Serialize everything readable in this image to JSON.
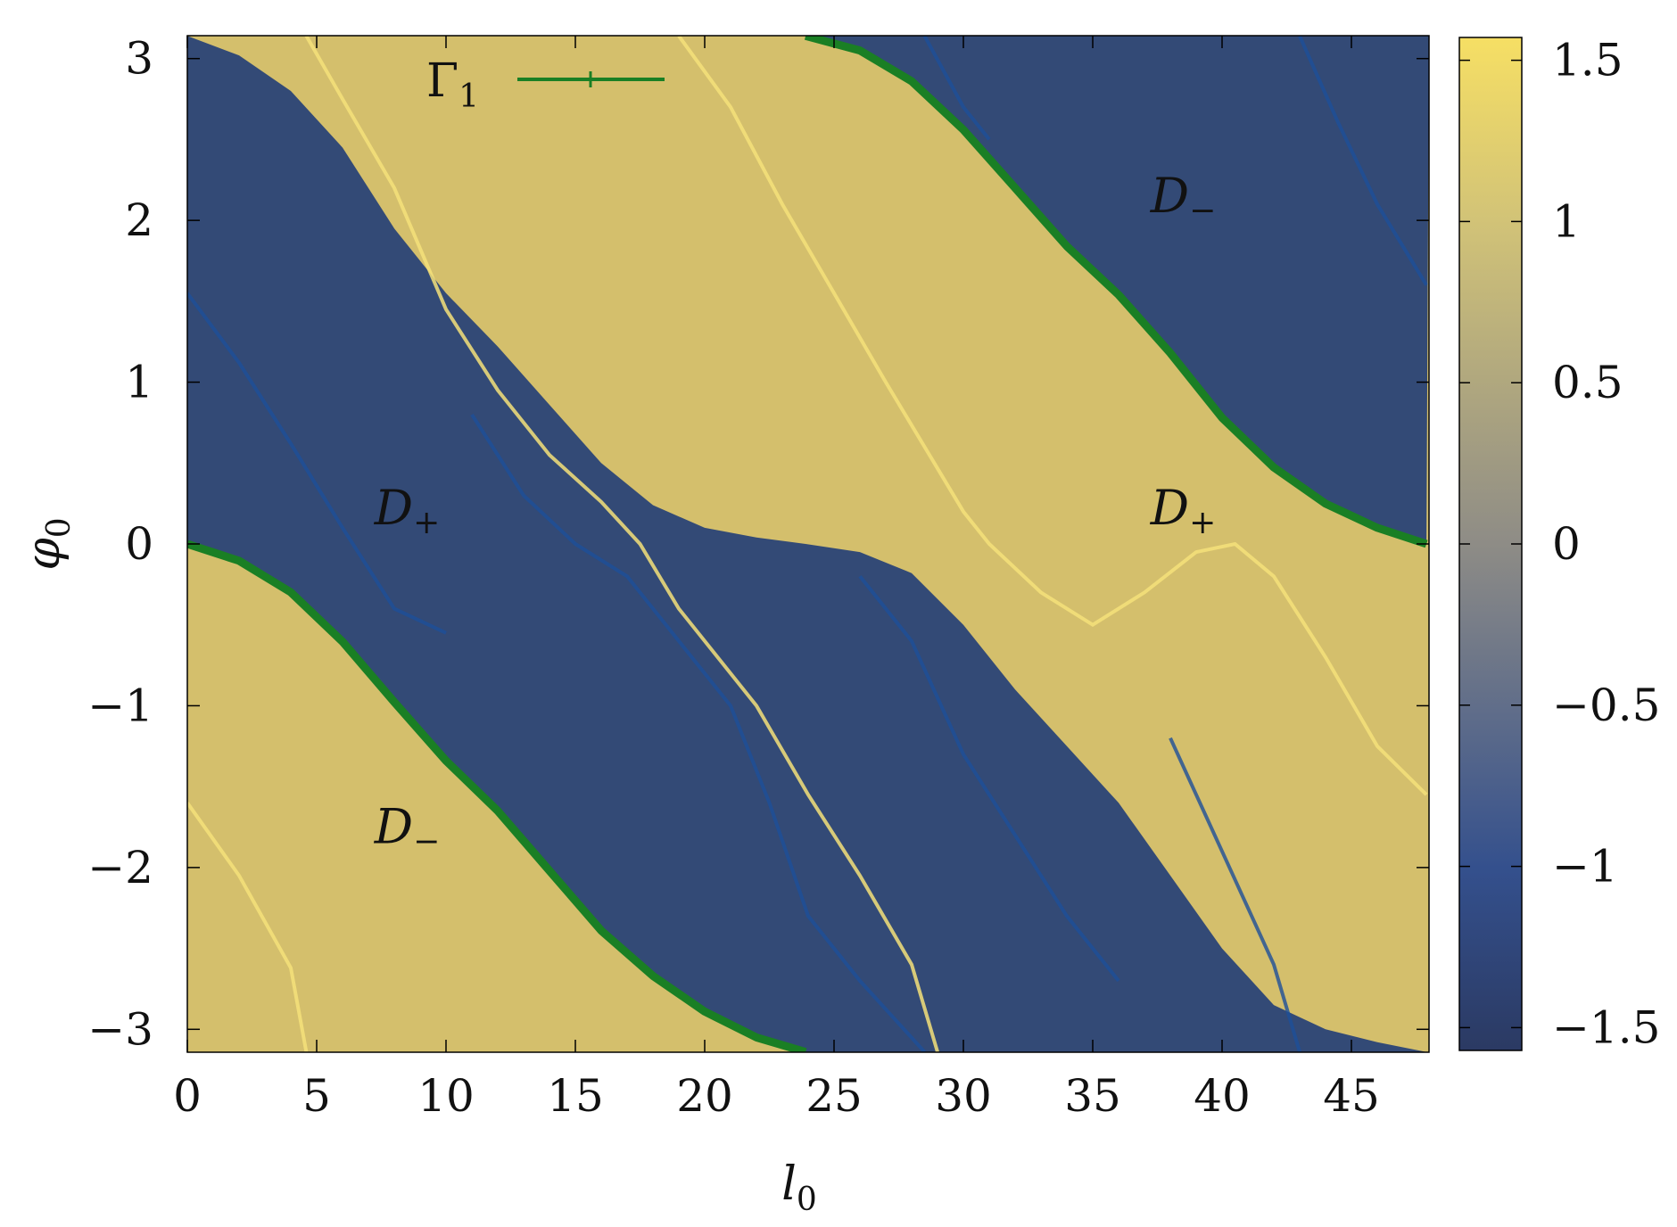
{
  "chart_data": {
    "type": "heatmap",
    "xlabel": "l",
    "xlabel_sub": "0",
    "ylabel": "φ",
    "ylabel_sub": "0",
    "xlim": [
      0,
      48
    ],
    "ylim": [
      -3.1416,
      3.1416
    ],
    "x_ticks": [
      0,
      5,
      10,
      15,
      20,
      25,
      30,
      35,
      40,
      45
    ],
    "x_tick_labels": [
      "0",
      "5",
      "10",
      "15",
      "20",
      "25",
      "30",
      "35",
      "40",
      "45"
    ],
    "y_ticks": [
      -3,
      -2,
      -1,
      0,
      1,
      2,
      3
    ],
    "y_tick_labels": [
      "−3",
      "−2",
      "−1",
      "0",
      "1",
      "2",
      "3"
    ],
    "colorbar": {
      "range": [
        -1.5708,
        1.5708
      ],
      "ticks": [
        -1.5,
        -1,
        -0.5,
        0,
        0.5,
        1,
        1.5
      ],
      "tick_labels": [
        "−1.5",
        "−1",
        "−0.5",
        "0",
        "0.5",
        "1",
        "1.5"
      ],
      "low_color": "#2a3f6e",
      "high_color": "#f3dc6a"
    },
    "colors": {
      "yellow_region": "#d4bf6c",
      "blue_region": "#334a76",
      "yellow_ridge": "#f5e07a",
      "blue_ridge": "#1d4f9a",
      "gamma_curve": "#1a7f24"
    },
    "legend": {
      "position": "top-left",
      "entries": [
        {
          "label": "Γ",
          "sub": "1",
          "color": "#1a7f24"
        }
      ]
    },
    "series": [
      {
        "name": "Γ1",
        "segments": [
          [
            [
              0.0,
              0.0
            ],
            [
              2.0,
              -0.104
            ],
            [
              4.0,
              -0.299
            ],
            [
              6.0,
              -0.604
            ],
            [
              8.0,
              -0.977
            ],
            [
              10.0,
              -1.34
            ],
            [
              12.0,
              -1.65
            ],
            [
              14.0,
              -2.02
            ],
            [
              16.0,
              -2.39
            ],
            [
              18.0,
              -2.67
            ],
            [
              20.0,
              -2.89
            ],
            [
              22.0,
              -3.05
            ],
            [
              23.9,
              -3.14
            ]
          ],
          [
            [
              23.9,
              3.14
            ],
            [
              26.0,
              3.05
            ],
            [
              28.0,
              2.86
            ],
            [
              30.0,
              2.56
            ],
            [
              32.0,
              2.2
            ],
            [
              34.0,
              1.84
            ],
            [
              36.0,
              1.54
            ],
            [
              38.0,
              1.18
            ],
            [
              40.0,
              0.78
            ],
            [
              42.0,
              0.473
            ],
            [
              44.0,
              0.249
            ],
            [
              46.0,
              0.0997
            ],
            [
              47.9,
              0.0
            ]
          ]
        ]
      }
    ],
    "region_boundaries": [
      [
        [
          0.0,
          3.14
        ],
        [
          2.0,
          3.02
        ],
        [
          4.0,
          2.8
        ],
        [
          6.0,
          2.45
        ],
        [
          8.0,
          1.95
        ],
        [
          10.0,
          1.55
        ],
        [
          12.0,
          1.22
        ],
        [
          14.0,
          0.86
        ],
        [
          16.0,
          0.5
        ],
        [
          18.0,
          0.24
        ],
        [
          20.0,
          0.1
        ],
        [
          22.0,
          0.04
        ],
        [
          23.9,
          0.0
        ],
        [
          26.0,
          -0.05
        ],
        [
          28.0,
          -0.18
        ],
        [
          30.0,
          -0.5
        ],
        [
          32.0,
          -0.9
        ],
        [
          34.0,
          -1.25
        ],
        [
          36.0,
          -1.6
        ],
        [
          38.0,
          -2.05
        ],
        [
          40.0,
          -2.5
        ],
        [
          42.0,
          -2.85
        ],
        [
          44.0,
          -3.0
        ],
        [
          46.0,
          -3.08
        ],
        [
          47.9,
          -3.14
        ]
      ]
    ],
    "yellow_ridges": [
      [
        [
          0.0,
          -1.6
        ],
        [
          2.0,
          -2.05
        ],
        [
          4.0,
          -2.62
        ],
        [
          4.6,
          -3.14
        ]
      ],
      [
        [
          4.6,
          3.14
        ],
        [
          6.0,
          2.75
        ],
        [
          8.0,
          2.2
        ],
        [
          10.0,
          1.45
        ],
        [
          12.0,
          0.95
        ],
        [
          14.0,
          0.55
        ],
        [
          16.0,
          0.26
        ],
        [
          17.5,
          0.0
        ],
        [
          19.0,
          -0.4
        ],
        [
          22.0,
          -1.0
        ],
        [
          24.0,
          -1.55
        ],
        [
          26.0,
          -2.05
        ],
        [
          28.0,
          -2.6
        ],
        [
          29.0,
          -3.14
        ]
      ],
      [
        [
          19.0,
          -3.14
        ]
      ],
      [
        [
          19.0,
          3.14
        ],
        [
          21.0,
          2.7
        ],
        [
          23.0,
          2.1
        ],
        [
          25.0,
          1.55
        ],
        [
          27.0,
          1.0
        ],
        [
          28.5,
          0.6
        ],
        [
          30.0,
          0.2
        ],
        [
          31.0,
          0.0
        ],
        [
          33.0,
          -0.3
        ],
        [
          35.0,
          -0.5
        ],
        [
          37.0,
          -0.3
        ],
        [
          39.0,
          -0.05
        ],
        [
          40.5,
          0.0
        ],
        [
          42.0,
          -0.2
        ],
        [
          44.0,
          -0.7
        ],
        [
          46.0,
          -1.25
        ],
        [
          47.9,
          -1.55
        ]
      ]
    ],
    "blue_ridges": [
      [
        [
          0.0,
          1.55
        ],
        [
          2.0,
          1.12
        ],
        [
          4.0,
          0.62
        ],
        [
          6.0,
          0.1
        ],
        [
          8.0,
          -0.4
        ],
        [
          10.0,
          -0.55
        ]
      ],
      [
        [
          11.0,
          0.8
        ],
        [
          13.0,
          0.3
        ],
        [
          15.0,
          0.0
        ],
        [
          17.0,
          -0.2
        ],
        [
          19.0,
          -0.6
        ],
        [
          21.0,
          -1.0
        ],
        [
          22.5,
          -1.6
        ],
        [
          24.0,
          -2.3
        ],
        [
          26.0,
          -2.7
        ],
        [
          28.5,
          -3.14
        ]
      ],
      [
        [
          28.5,
          3.14
        ],
        [
          30.0,
          2.7
        ],
        [
          31.0,
          2.5
        ]
      ],
      [
        [
          26.0,
          -0.2
        ],
        [
          28.0,
          -0.6
        ],
        [
          30.0,
          -1.3
        ],
        [
          32.0,
          -1.8
        ],
        [
          34.0,
          -2.3
        ],
        [
          36.0,
          -2.7
        ]
      ],
      [
        [
          38.0,
          -1.2
        ],
        [
          40.0,
          -1.9
        ],
        [
          42.0,
          -2.6
        ],
        [
          43.0,
          -3.14
        ]
      ],
      [
        [
          43.0,
          3.14
        ],
        [
          44.5,
          2.6
        ],
        [
          46.0,
          2.1
        ],
        [
          47.9,
          1.6
        ]
      ]
    ],
    "annotations": [
      {
        "text": "D",
        "sub": "+",
        "x": 8.5,
        "y": 0.12
      },
      {
        "text": "D",
        "sub": "−",
        "x": 8.5,
        "y": -1.85
      },
      {
        "text": "D",
        "sub": "−",
        "x": 38.5,
        "y": 2.05
      },
      {
        "text": "D",
        "sub": "+",
        "x": 38.5,
        "y": 0.12
      }
    ]
  }
}
